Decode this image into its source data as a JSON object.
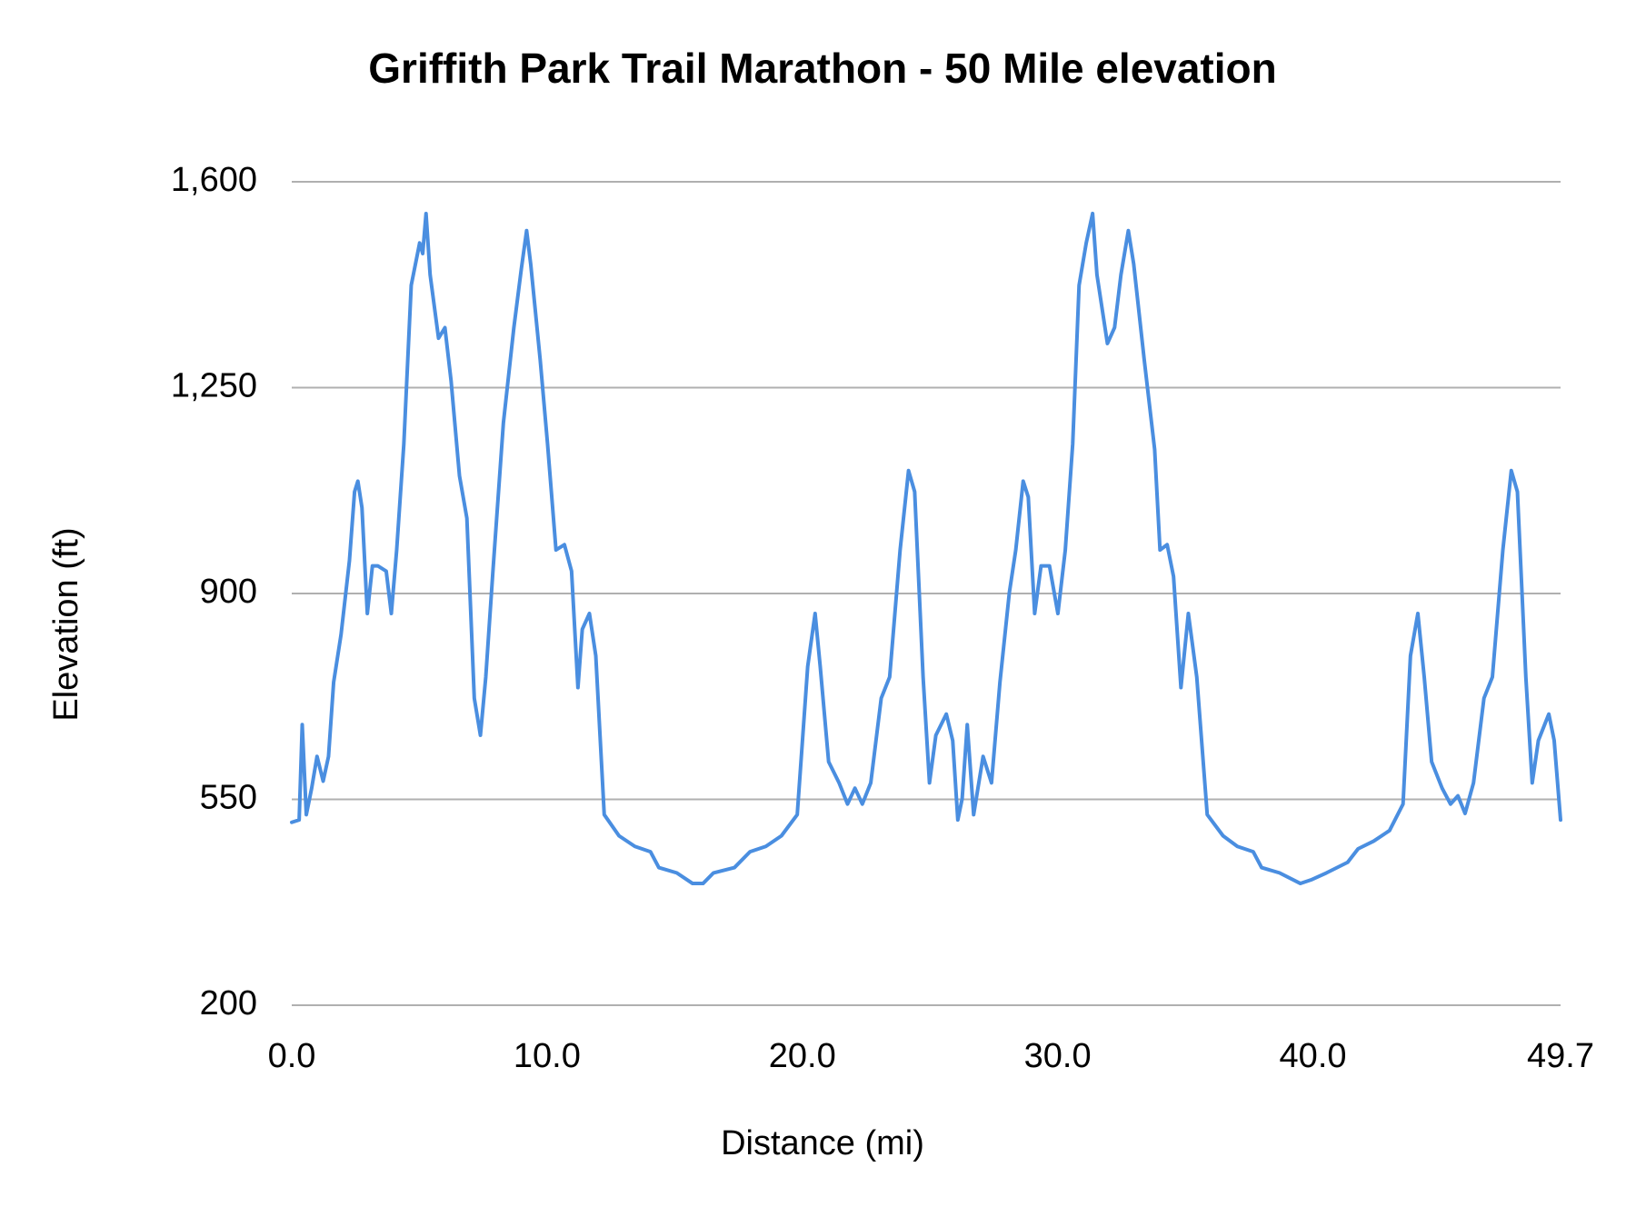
{
  "chart_data": {
    "type": "line",
    "title": "Griffith Park Trail Marathon - 50 Mile  elevation",
    "x_label": "Distance (mi)",
    "y_label": "Elevation (ft)",
    "color": "#4a8ee0",
    "grid": true,
    "xlim": [
      0,
      49.7
    ],
    "ylim": [
      200,
      1600
    ],
    "xticks": [
      {
        "value": 0,
        "label": "0.0"
      },
      {
        "value": 10,
        "label": "10.0"
      },
      {
        "value": 20,
        "label": "20.0"
      },
      {
        "value": 30,
        "label": "30.0"
      },
      {
        "value": 40,
        "label": "40.0"
      },
      49.7
    ],
    "yticks": [
      200,
      550,
      900,
      {
        "value": 1250,
        "label": "1,250"
      },
      {
        "value": 1600,
        "label": "1,600"
      }
    ],
    "x": [
      0,
      0.29,
      0.41,
      0.57,
      0.78,
      0.99,
      1.23,
      1.44,
      1.64,
      1.93,
      2.26,
      2.46,
      2.59,
      2.75,
      2.96,
      3.16,
      3.37,
      3.7,
      3.9,
      4.11,
      4.39,
      4.68,
      5.01,
      5.13,
      5.26,
      5.42,
      5.75,
      6.0,
      6.24,
      6.57,
      6.86,
      7.15,
      7.39,
      7.6,
      7.88,
      8.29,
      8.7,
      8.99,
      9.2,
      9.36,
      9.73,
      10.02,
      10.35,
      10.68,
      10.96,
      11.21,
      11.38,
      11.66,
      11.91,
      12.24,
      12.82,
      13.44,
      14.05,
      14.38,
      15.08,
      15.7,
      16.11,
      16.52,
      17.34,
      17.95,
      18.57,
      19.18,
      19.8,
      20.21,
      20.5,
      20.7,
      21.03,
      21.44,
      21.77,
      22.06,
      22.35,
      22.68,
      23.09,
      23.42,
      23.83,
      24.16,
      24.4,
      24.73,
      24.98,
      25.23,
      25.64,
      25.89,
      26.09,
      26.26,
      26.46,
      26.71,
      27.08,
      27.41,
      27.74,
      28.11,
      28.36,
      28.65,
      28.85,
      29.1,
      29.35,
      29.68,
      30.01,
      30.3,
      30.59,
      30.84,
      31.12,
      31.37,
      31.54,
      31.95,
      32.23,
      32.48,
      32.77,
      32.98,
      33.39,
      33.8,
      34.01,
      34.29,
      34.54,
      34.83,
      35.12,
      35.45,
      35.86,
      36.48,
      37.04,
      37.66,
      37.99,
      38.69,
      39.51,
      39.92,
      40.53,
      41.36,
      41.77,
      42.38,
      43.0,
      43.53,
      43.82,
      44.11,
      44.36,
      44.65,
      45.06,
      45.39,
      45.68,
      45.96,
      46.29,
      46.7,
      47.03,
      47.44,
      47.77,
      48.01,
      48.34,
      48.59,
      48.83,
      49.24,
      49.45,
      49.7
    ],
    "values": [
      511,
      515,
      677,
      524,
      569,
      623,
      581,
      623,
      749,
      830,
      956,
      1073,
      1091,
      1046,
      866,
      947,
      947,
      938,
      866,
      974,
      1154,
      1424,
      1496,
      1478,
      1546,
      1442,
      1334,
      1352,
      1262,
      1100,
      1028,
      722,
      659,
      758,
      938,
      1190,
      1352,
      1451,
      1517,
      1460,
      1298,
      1154,
      974,
      983,
      938,
      740,
      839,
      866,
      794,
      524,
      488,
      470,
      461,
      434,
      425,
      407,
      407,
      425,
      434,
      461,
      470,
      488,
      524,
      776,
      866,
      776,
      614,
      578,
      542,
      569,
      542,
      578,
      722,
      758,
      974,
      1109,
      1073,
      758,
      578,
      659,
      695,
      650,
      515,
      551,
      677,
      524,
      623,
      578,
      749,
      902,
      974,
      1091,
      1064,
      866,
      947,
      947,
      866,
      974,
      1154,
      1424,
      1496,
      1546,
      1442,
      1325,
      1352,
      1442,
      1517,
      1460,
      1298,
      1145,
      974,
      983,
      929,
      740,
      866,
      758,
      524,
      488,
      470,
      461,
      434,
      425,
      407,
      413,
      425,
      443,
      466,
      479,
      497,
      542,
      794,
      866,
      758,
      614,
      569,
      542,
      556,
      526,
      578,
      722,
      758,
      974,
      1109,
      1073,
      758,
      578,
      650,
      695,
      650,
      515
    ]
  }
}
